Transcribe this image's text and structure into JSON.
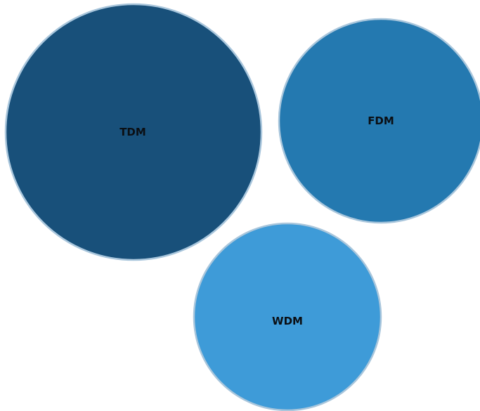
{
  "diagram": {
    "bubbles": [
      {
        "label": "TDM",
        "fill": "#18507a",
        "stroke": "#a9c6dc"
      },
      {
        "label": "FDM",
        "fill": "#2479b0",
        "stroke": "#a9c6dc"
      },
      {
        "label": "WDM",
        "fill": "#3e9bd8",
        "stroke": "#a9c6dc"
      }
    ],
    "background": "#ffffff"
  }
}
